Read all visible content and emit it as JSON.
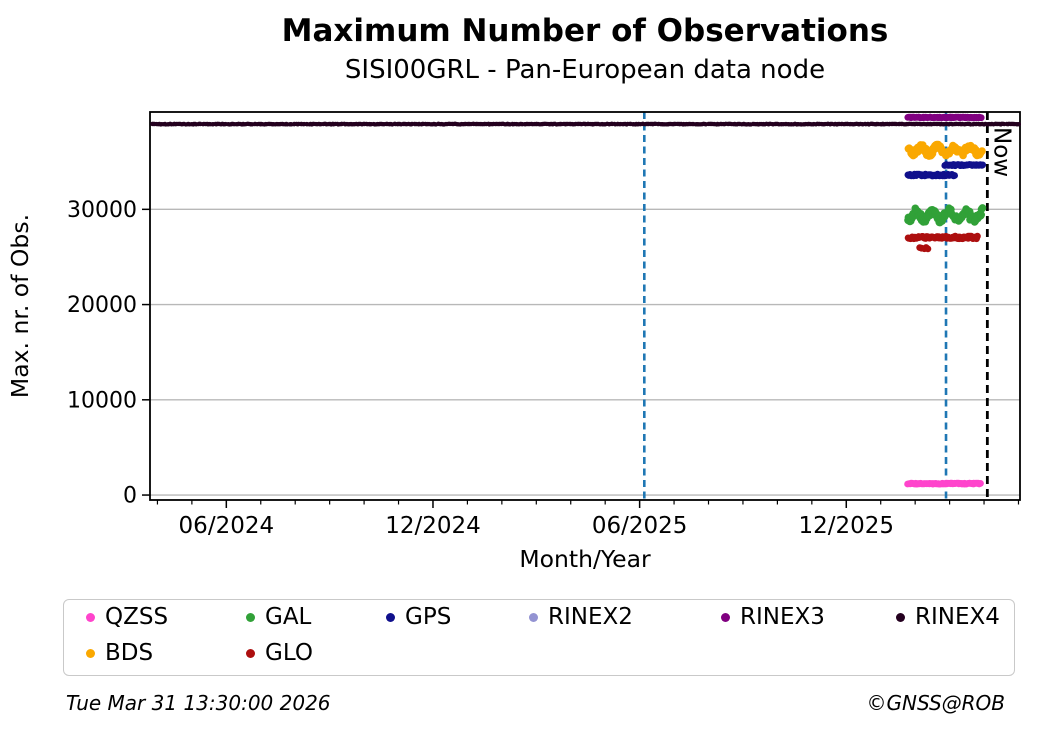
{
  "page": {
    "background": "#ffffff"
  },
  "header": {
    "title": "Maximum Number of Observations",
    "subtitle": "SISI00GRL - Pan-European data node"
  },
  "footer": {
    "timestamp": "Tue Mar 31 13:30:00 2026",
    "credit": "©GNSS@ROB"
  },
  "chart_data": {
    "type": "scatter",
    "title": "Maximum Number of Observations",
    "subtitle": "SISI00GRL - Pan-European data node",
    "xlabel": "Month/Year",
    "ylabel": "Max. nr. of Obs.",
    "x_domain_decimal_year": [
      2024.232,
      2026.337
    ],
    "ylim": [
      -520,
      40220
    ],
    "x_major_ticks": [
      {
        "value": 2024.4167,
        "label": "06/2024"
      },
      {
        "value": 2024.9167,
        "label": "12/2024"
      },
      {
        "value": 2025.4167,
        "label": "06/2025"
      },
      {
        "value": 2025.9167,
        "label": "12/2025"
      }
    ],
    "x_minor_tick_interval_months": 1,
    "y_ticks": [
      {
        "value": 0,
        "label": "0"
      },
      {
        "value": 10000,
        "label": "10000"
      },
      {
        "value": 20000,
        "label": "20000"
      },
      {
        "value": 30000,
        "label": "30000"
      }
    ],
    "grid": true,
    "grid_color": "#b8b8b8",
    "frame_color": "#000000",
    "now_label": "Now",
    "vlines": [
      {
        "name": "marker-vline-1",
        "x": 2025.428,
        "color": "#1f77b4",
        "style": "dashed",
        "width": 2.6,
        "dash": "7 4.5"
      },
      {
        "name": "marker-vline-2",
        "x": 2026.158,
        "color": "#1f77b4",
        "style": "dashed",
        "width": 2.6,
        "dash": "7 4.5"
      },
      {
        "name": "now-vline",
        "x": 2026.258,
        "color": "#000000",
        "style": "dashed",
        "width": 2.8,
        "dash": "8 5",
        "label": "Now"
      }
    ],
    "series": [
      {
        "name": "RINEX4",
        "color": "#24001f",
        "clusters": [
          {
            "x0": 2024.237,
            "x1": 2026.334,
            "y": 38950,
            "spread": 60,
            "n": 620,
            "r": 2.2
          }
        ]
      },
      {
        "name": "RINEX3",
        "color": "#800080",
        "clusters": [
          {
            "x0": 2026.065,
            "x1": 2026.243,
            "y": 39650,
            "spread": 80,
            "n": 85,
            "r": 3.4
          }
        ]
      },
      {
        "name": "RINEX2",
        "color": "#9393d2",
        "clusters": []
      },
      {
        "name": "BDS",
        "color": "#faa800",
        "clusters": [
          {
            "x0": 2026.067,
            "x1": 2026.244,
            "y": 36200,
            "spread": 680,
            "n": 100,
            "r": 3.8,
            "wiggle": true
          }
        ]
      },
      {
        "name": "GPS",
        "color": "#10108c",
        "clusters": [
          {
            "x0": 2026.066,
            "x1": 2026.178,
            "y": 33600,
            "spread": 200,
            "n": 55,
            "r": 3.4
          },
          {
            "x0": 2026.156,
            "x1": 2026.247,
            "y": 34650,
            "spread": 140,
            "n": 45,
            "r": 3.4
          }
        ]
      },
      {
        "name": "GAL",
        "color": "#31a138",
        "clusters": [
          {
            "x0": 2026.067,
            "x1": 2026.246,
            "y": 29350,
            "spread": 800,
            "n": 125,
            "r": 3.8,
            "wiggle": true
          }
        ]
      },
      {
        "name": "GLO",
        "color": "#ad0f0f",
        "clusters": [
          {
            "x0": 2026.067,
            "x1": 2026.235,
            "y": 27050,
            "spread": 270,
            "n": 85,
            "r": 3.4
          },
          {
            "x0": 2026.095,
            "x1": 2026.115,
            "y": 26000,
            "spread": 400,
            "n": 5,
            "r": 3.4
          }
        ]
      },
      {
        "name": "QZSS",
        "color": "#ff44cc",
        "clusters": [
          {
            "x0": 2026.066,
            "x1": 2026.242,
            "y": 1200,
            "spread": 100,
            "n": 80,
            "r": 3.4
          }
        ]
      }
    ],
    "legend": {
      "position": "bottom",
      "columns": 6,
      "items": [
        {
          "label": "QZSS",
          "color": "#ff44cc"
        },
        {
          "label": "GAL",
          "color": "#31a138"
        },
        {
          "label": "GPS",
          "color": "#10108c"
        },
        {
          "label": "RINEX2",
          "color": "#9393d2"
        },
        {
          "label": "RINEX3",
          "color": "#800080"
        },
        {
          "label": "RINEX4",
          "color": "#24001f"
        },
        {
          "label": "BDS",
          "color": "#faa800"
        },
        {
          "label": "GLO",
          "color": "#ad0f0f"
        }
      ]
    }
  }
}
